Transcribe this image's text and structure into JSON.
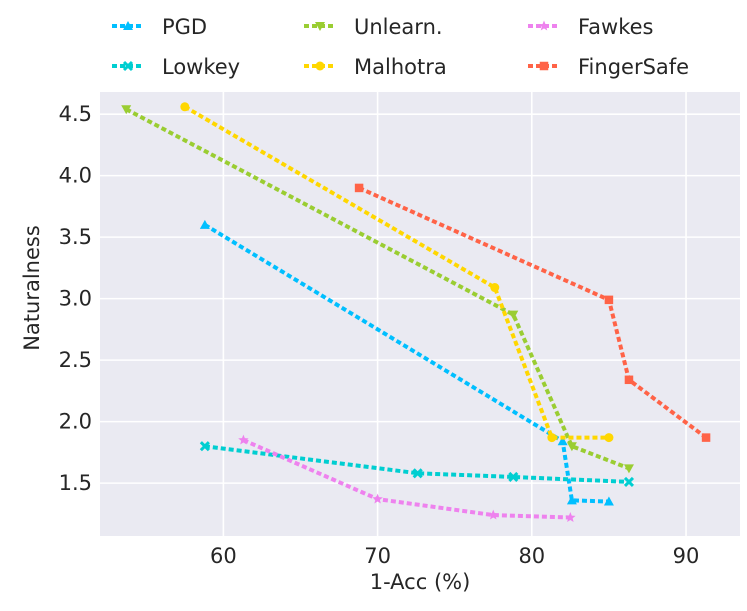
{
  "chart_data": {
    "type": "line",
    "xlabel": "1-Acc (%)",
    "ylabel": "Naturalness",
    "xlim": [
      52,
      93.5
    ],
    "ylim": [
      1.07,
      4.68
    ],
    "xticks": [
      60,
      70,
      80,
      90
    ],
    "yticks": [
      1.5,
      2.0,
      2.5,
      3.0,
      3.5,
      4.0,
      4.5
    ],
    "ytick_labels": [
      "1.5",
      "2.0",
      "2.5",
      "3.0",
      "3.5",
      "4.0",
      "4.5"
    ],
    "xtick_labels": [
      "60",
      "70",
      "80",
      "90"
    ],
    "grid": true,
    "legend_placement": "top, above plot, 3 columns",
    "series": [
      {
        "name": "PGD",
        "color": "#00BFFF",
        "marker": "triangle",
        "x": [
          58.8,
          82.0,
          82.6,
          85.0
        ],
        "y": [
          3.6,
          1.84,
          1.36,
          1.35
        ]
      },
      {
        "name": "Lowkey",
        "color": "#00CED1",
        "marker": "x",
        "x": [
          58.8,
          72.6,
          78.8,
          86.3
        ],
        "y": [
          1.8,
          1.58,
          1.55,
          1.51
        ]
      },
      {
        "name": "Unlearn.",
        "color": "#9ACD32",
        "marker": "triangle-down",
        "x": [
          53.7,
          78.8,
          82.6,
          86.3
        ],
        "y": [
          4.54,
          2.87,
          1.8,
          1.62
        ]
      },
      {
        "name": "Malhotra",
        "color": "#FFD700",
        "marker": "circle",
        "x": [
          57.5,
          77.6,
          81.3,
          85.0
        ],
        "y": [
          4.56,
          3.09,
          1.87,
          1.87
        ]
      },
      {
        "name": "Fawkes",
        "color": "#EE82EE",
        "marker": "star",
        "x": [
          61.3,
          70.0,
          77.5,
          82.5
        ],
        "y": [
          1.85,
          1.37,
          1.24,
          1.22
        ]
      },
      {
        "name": "FingerSafe",
        "color": "#FF6347",
        "marker": "square",
        "x": [
          68.8,
          85.0,
          86.3,
          91.3
        ],
        "y": [
          3.9,
          2.99,
          2.34,
          1.87
        ]
      }
    ]
  }
}
